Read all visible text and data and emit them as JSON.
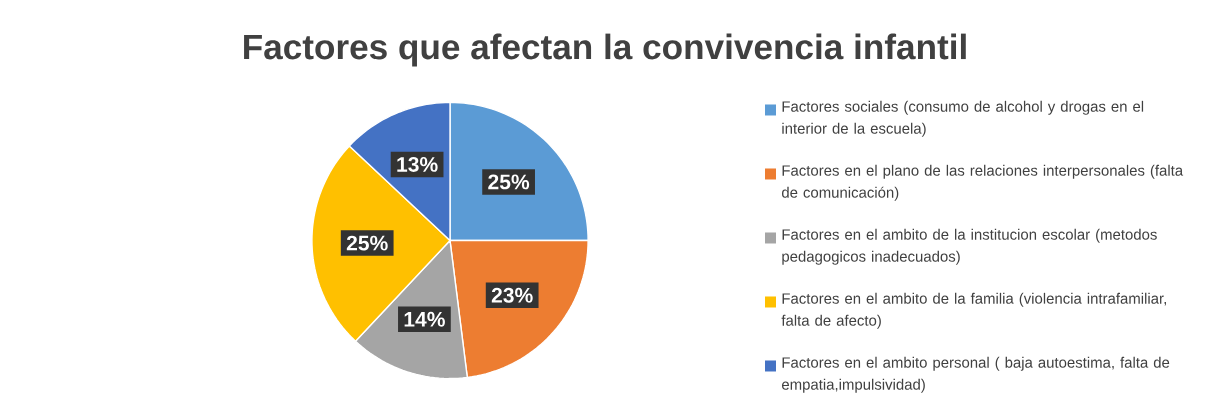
{
  "chart_data": {
    "type": "pie",
    "title": "Factores que afectan la convivencia infantil",
    "categories": [
      "Factores sociales (consumo de alcohol y drogas en el interior de la escuela)",
      "Factores en el plano de las relaciones interpersonales (falta de comunicación)",
      "Factores en el ambito de la institucion escolar (metodos pedagogicos inadecuados)",
      "Factores en el ambito de la familia (violencia intrafamiliar, falta de afecto)",
      "Factores en el ambito personal ( baja autoestima, falta de empatia,impulsividad)"
    ],
    "values": [
      25,
      23,
      14,
      25,
      13
    ],
    "value_labels": [
      "25%",
      "23%",
      "14%",
      "25%",
      "13%"
    ],
    "colors": [
      "#5b9bd5",
      "#ed7d31",
      "#a5a5a5",
      "#ffc000",
      "#4472c4"
    ],
    "legend": "right"
  }
}
